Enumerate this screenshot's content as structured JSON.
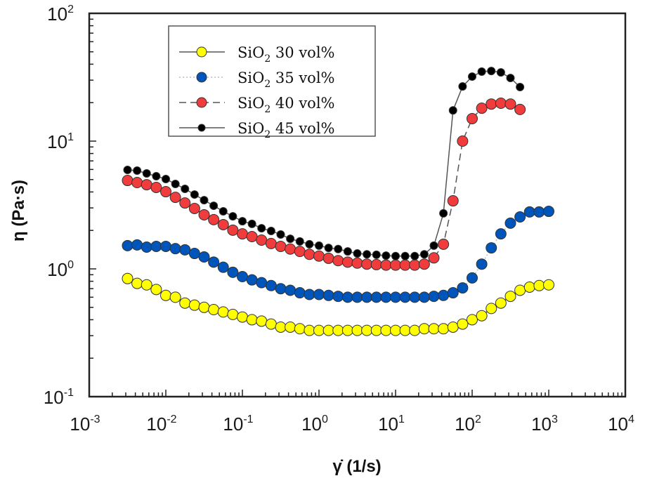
{
  "chart_data": {
    "type": "scatter",
    "title": "",
    "xlabel": "γ̇ (1/s)",
    "ylabel": "η (Pa·s)",
    "xscale": "log",
    "yscale": "log",
    "xlim": [
      0.001,
      10000
    ],
    "ylim": [
      0.1,
      100
    ],
    "x_ticks": [
      {
        "base": "10",
        "exp": "-3"
      },
      {
        "base": "10",
        "exp": "-2"
      },
      {
        "base": "10",
        "exp": "-1"
      },
      {
        "base": "10",
        "exp": "0"
      },
      {
        "base": "10",
        "exp": "1"
      },
      {
        "base": "10",
        "exp": "2"
      },
      {
        "base": "10",
        "exp": "3"
      },
      {
        "base": "10",
        "exp": "4"
      }
    ],
    "y_ticks": [
      {
        "base": "10",
        "exp": "-1"
      },
      {
        "base": "10",
        "exp": "0"
      },
      {
        "base": "10",
        "exp": "1"
      },
      {
        "base": "10",
        "exp": "2"
      }
    ],
    "grid": false,
    "legend_position": "top-left",
    "x_log_start": -2.5,
    "x_log_step": 0.125,
    "series": [
      {
        "name": "SiO2 30 vol%",
        "label_main": "SiO",
        "label_sub": "2",
        "label_rest": " 30 vol%",
        "color": "#ffff00",
        "line_style": "solid",
        "marker_size": "large",
        "values": [
          0.84,
          0.77,
          0.75,
          0.69,
          0.62,
          0.6,
          0.54,
          0.52,
          0.5,
          0.48,
          0.46,
          0.44,
          0.42,
          0.4,
          0.39,
          0.37,
          0.35,
          0.35,
          0.34,
          0.33,
          0.33,
          0.33,
          0.33,
          0.33,
          0.33,
          0.33,
          0.33,
          0.33,
          0.33,
          0.33,
          0.33,
          0.34,
          0.34,
          0.34,
          0.35,
          0.37,
          0.4,
          0.43,
          0.49,
          0.54,
          0.61,
          0.68,
          0.72,
          0.74,
          0.75
        ]
      },
      {
        "name": "SiO2 35 vol%",
        "label_main": "SiO",
        "label_sub": "2",
        "label_rest": " 35 vol%",
        "color": "#0055bb",
        "line_style": "dotted",
        "marker_size": "large",
        "values": [
          1.52,
          1.54,
          1.48,
          1.5,
          1.5,
          1.44,
          1.41,
          1.32,
          1.24,
          1.13,
          1.03,
          0.94,
          0.87,
          0.82,
          0.78,
          0.74,
          0.7,
          0.68,
          0.65,
          0.63,
          0.63,
          0.62,
          0.61,
          0.6,
          0.6,
          0.6,
          0.6,
          0.6,
          0.6,
          0.6,
          0.6,
          0.6,
          0.61,
          0.62,
          0.65,
          0.71,
          0.85,
          1.09,
          1.46,
          1.88,
          2.28,
          2.55,
          2.79,
          2.79,
          2.82
        ]
      },
      {
        "name": "SiO2 40 vol%",
        "label_main": "SiO",
        "label_sub": "2",
        "label_rest": " 40 vol%",
        "color": "#f03c3c",
        "line_style": "dashed",
        "marker_size": "large",
        "values": [
          4.92,
          4.74,
          4.56,
          4.34,
          4.02,
          3.63,
          3.28,
          2.97,
          2.65,
          2.43,
          2.22,
          2.01,
          1.88,
          1.79,
          1.68,
          1.58,
          1.5,
          1.43,
          1.37,
          1.3,
          1.26,
          1.21,
          1.16,
          1.13,
          1.11,
          1.09,
          1.08,
          1.07,
          1.07,
          1.07,
          1.07,
          1.09,
          1.22,
          1.56,
          3.41,
          10.0,
          15.0,
          18.1,
          19.5,
          19.8,
          19.5,
          17.7
        ]
      },
      {
        "name": "SiO2 45 vol%",
        "label_main": "SiO",
        "label_sub": "2",
        "label_rest": " 45 vol%",
        "color": "#000000",
        "line_style": "solid",
        "marker_size": "small",
        "values": [
          5.95,
          5.88,
          5.59,
          5.31,
          5.05,
          4.62,
          4.23,
          3.82,
          3.45,
          3.12,
          2.82,
          2.58,
          2.36,
          2.25,
          2.08,
          1.98,
          1.86,
          1.72,
          1.64,
          1.56,
          1.52,
          1.46,
          1.43,
          1.37,
          1.32,
          1.3,
          1.29,
          1.27,
          1.26,
          1.26,
          1.26,
          1.3,
          1.52,
          2.72,
          17.4,
          26.8,
          32.0,
          35.0,
          35.4,
          34.5,
          31.2,
          26.5
        ]
      }
    ]
  }
}
